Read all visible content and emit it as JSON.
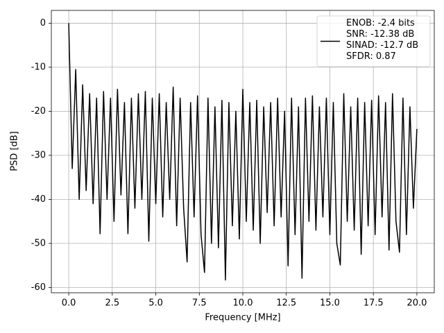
{
  "chart_data": {
    "type": "line",
    "xlabel": "Frequency [MHz]",
    "ylabel": "PSD [dB]",
    "x": [
      0,
      0.2,
      0.4,
      0.6,
      0.8,
      1.0,
      1.2,
      1.4,
      1.6,
      1.8,
      2.0,
      2.2,
      2.4,
      2.6,
      2.8,
      3.0,
      3.2,
      3.4,
      3.6,
      3.8,
      4.0,
      4.2,
      4.4,
      4.6,
      4.8,
      5.0,
      5.2,
      5.4,
      5.6,
      5.8,
      6.0,
      6.2,
      6.4,
      6.6,
      6.8,
      7.0,
      7.2,
      7.4,
      7.6,
      7.8,
      8.0,
      8.2,
      8.4,
      8.6,
      8.8,
      9.0,
      9.2,
      9.4,
      9.6,
      9.8,
      10.0,
      10.2,
      10.4,
      10.6,
      10.8,
      11.0,
      11.2,
      11.4,
      11.6,
      11.8,
      12.0,
      12.2,
      12.4,
      12.6,
      12.8,
      13.0,
      13.2,
      13.4,
      13.6,
      13.8,
      14.0,
      14.2,
      14.4,
      14.6,
      14.8,
      15.0,
      15.2,
      15.4,
      15.6,
      15.8,
      16.0,
      16.2,
      16.4,
      16.6,
      16.8,
      17.0,
      17.2,
      17.4,
      17.6,
      17.8,
      18.0,
      18.2,
      18.4,
      18.6,
      18.8,
      19.0,
      19.2,
      19.4,
      19.6,
      19.8,
      20.0
    ],
    "series": [
      {
        "name": "ENOB: -2.4 bits\nSNR: -12.38 dB\nSINAD: -12.7 dB\nSFDR: 0.87",
        "color": "#000000",
        "values": [
          0,
          -33,
          -10.5,
          -40,
          -14,
          -38,
          -16,
          -41,
          -17,
          -47.8,
          -15.5,
          -40,
          -17,
          -45,
          -15,
          -39,
          -18,
          -47.8,
          -17,
          -42,
          -16,
          -40,
          -15.5,
          -49.5,
          -17,
          -41,
          -16,
          -44,
          -18,
          -40,
          -14.5,
          -46,
          -17,
          -42,
          -54.2,
          -18,
          -44,
          -16.5,
          -48,
          -56.6,
          -17,
          -50,
          -19,
          -51,
          -17.5,
          -58.3,
          -18,
          -46,
          -20,
          -49,
          -15,
          -45,
          -18,
          -47,
          -17.5,
          -50,
          -19,
          -43,
          -18,
          -46,
          -17,
          -44,
          -20,
          -55.1,
          -17,
          -48,
          -19,
          -57.9,
          -17,
          -45,
          -16.5,
          -47,
          -19,
          -44,
          -17,
          -48,
          -18,
          -50,
          -54.9,
          -16,
          -45,
          -19,
          -47,
          -17,
          -52.5,
          -18,
          -46,
          -17.5,
          -48,
          -16.5,
          -44,
          -18,
          -51.5,
          -16,
          -45,
          -52,
          -17,
          -48,
          -19,
          -42,
          -24
        ]
      }
    ],
    "xlim": [
      -1,
      21
    ],
    "xticks": [
      {
        "value": 0,
        "label": "0.0"
      },
      2.5,
      {
        "value": 5,
        "label": "5.0"
      },
      7.5,
      {
        "value": 10,
        "label": "10.0"
      },
      12.5,
      {
        "value": 15,
        "label": "15.0"
      },
      17.5,
      {
        "value": 20,
        "label": "20.0"
      }
    ],
    "ylim": [
      -61.2,
      2.9
    ],
    "yticks": [
      -60,
      -50,
      -40,
      -30,
      -20,
      -10,
      0
    ],
    "grid": true,
    "legend": "upper right"
  }
}
